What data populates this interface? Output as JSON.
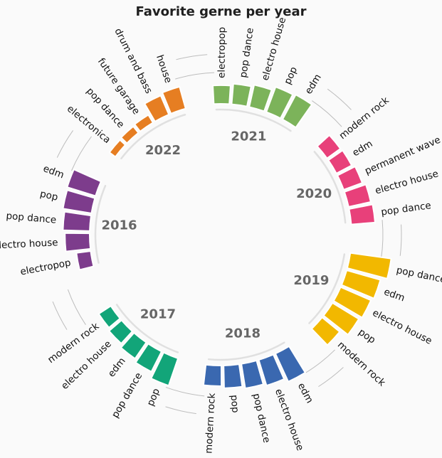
{
  "chart_data": {
    "type": "bar",
    "layout": "circular",
    "title": "Favorite gerne per year",
    "groups": [
      {
        "year": "2016",
        "color": "#7d3c8c",
        "categories": [
          "electropop",
          "electro house",
          "pop dance",
          "pop",
          "edm"
        ],
        "values": [
          0.35,
          0.6,
          0.65,
          0.7,
          0.72
        ]
      },
      {
        "year": "2022",
        "color": "#e67e22",
        "categories": [
          "electronica",
          "pop dance",
          "future garage",
          "drum and bass",
          "house"
        ],
        "values": [
          0.18,
          0.2,
          0.22,
          0.5,
          0.55
        ]
      },
      {
        "year": "2021",
        "color": "#7cb35a",
        "categories": [
          "electropop",
          "pop dance",
          "electro house",
          "pop",
          "edm"
        ],
        "values": [
          0.45,
          0.5,
          0.55,
          0.65,
          0.68
        ]
      },
      {
        "year": "2020",
        "color": "#e8407a",
        "categories": [
          "modern rock",
          "edm",
          "permanent wave",
          "electro house",
          "pop dance"
        ],
        "values": [
          0.4,
          0.42,
          0.48,
          0.55,
          0.58
        ]
      },
      {
        "year": "2019",
        "color": "#f2b800",
        "categories": [
          "pop dance",
          "edm",
          "electro house",
          "pop",
          "modern rock"
        ],
        "values": [
          1.0,
          0.85,
          0.8,
          0.75,
          0.55
        ]
      },
      {
        "year": "2018",
        "color": "#3a68b0",
        "categories": [
          "edm",
          "electro house",
          "pop dance",
          "pop",
          "modern rock"
        ],
        "values": [
          0.75,
          0.65,
          0.6,
          0.55,
          0.5
        ]
      },
      {
        "year": "2017",
        "color": "#12a579",
        "categories": [
          "pop",
          "pop dance",
          "edm",
          "electro house",
          "modern rock"
        ],
        "values": [
          0.7,
          0.55,
          0.48,
          0.4,
          0.35
        ]
      }
    ]
  }
}
